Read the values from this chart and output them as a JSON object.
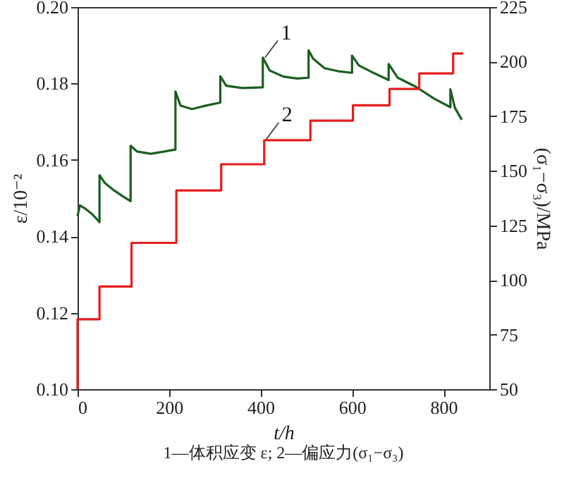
{
  "chart_data": {
    "type": "line",
    "xlabel": "t/h",
    "ylabel": "ε/10⁻²",
    "y2label": "(σ₁−σ₃)/MPa",
    "xlim": [
      0,
      900
    ],
    "xticks": [
      0,
      200,
      400,
      600,
      800
    ],
    "ylim": [
      0.1,
      0.2
    ],
    "yticks": [
      {
        "value": 0.1,
        "label": "0.10"
      },
      0.12,
      0.14,
      0.16,
      0.18,
      {
        "value": 0.2,
        "label": "0.20"
      }
    ],
    "y2lim": [
      50,
      225
    ],
    "y2ticks": [
      50,
      75,
      100,
      125,
      150,
      175,
      200,
      225
    ],
    "series": [
      {
        "type": "line",
        "color": "#1b5e20",
        "x": [
          0,
          5,
          15,
          31,
          46,
          48,
          48,
          60,
          80,
          100,
          116,
          116,
          130,
          160,
          190,
          214,
          214,
          225,
          250,
          280,
          312,
          312,
          325,
          360,
          405,
          405,
          420,
          450,
          480,
          505,
          505,
          515,
          540,
          570,
          600,
          600,
          615,
          650,
          680,
          680,
          700,
          740,
          780,
          815,
          815,
          825,
          840
        ],
        "values": [
          0.1453,
          0.1481,
          0.1474,
          0.1459,
          0.144,
          0.1437,
          0.156,
          0.1539,
          0.152,
          0.1504,
          0.1492,
          0.1637,
          0.1622,
          0.1616,
          0.1622,
          0.1627,
          0.1779,
          0.1742,
          0.1733,
          0.1742,
          0.175,
          0.1819,
          0.1794,
          0.1788,
          0.179,
          0.1868,
          0.1834,
          0.1818,
          0.1813,
          0.1815,
          0.1887,
          0.1865,
          0.184,
          0.1832,
          0.1828,
          0.1873,
          0.1847,
          0.1826,
          0.1809,
          0.1851,
          0.1815,
          0.1791,
          0.176,
          0.1738,
          0.1785,
          0.1736,
          0.1705
        ]
      },
      {
        "type": "step",
        "axis": "y2",
        "color": "#e41e1e",
        "x": [
          0,
          0,
          48,
          118,
          216,
          314,
          408,
          509,
          602,
          682,
          747,
          821,
          843
        ],
        "values": [
          50,
          82,
          97,
          117,
          141,
          153,
          164,
          173,
          180,
          187.5,
          194.6,
          203.7,
          203.7
        ]
      }
    ],
    "annotations": [
      {
        "text": "1",
        "x": 410,
        "y": 0.1868
      },
      {
        "text": "2",
        "x": 412,
        "y": 0.1653
      },
      "1—体积应变 ε; 2—偏应力(σ₁−σ₃)"
    ]
  }
}
